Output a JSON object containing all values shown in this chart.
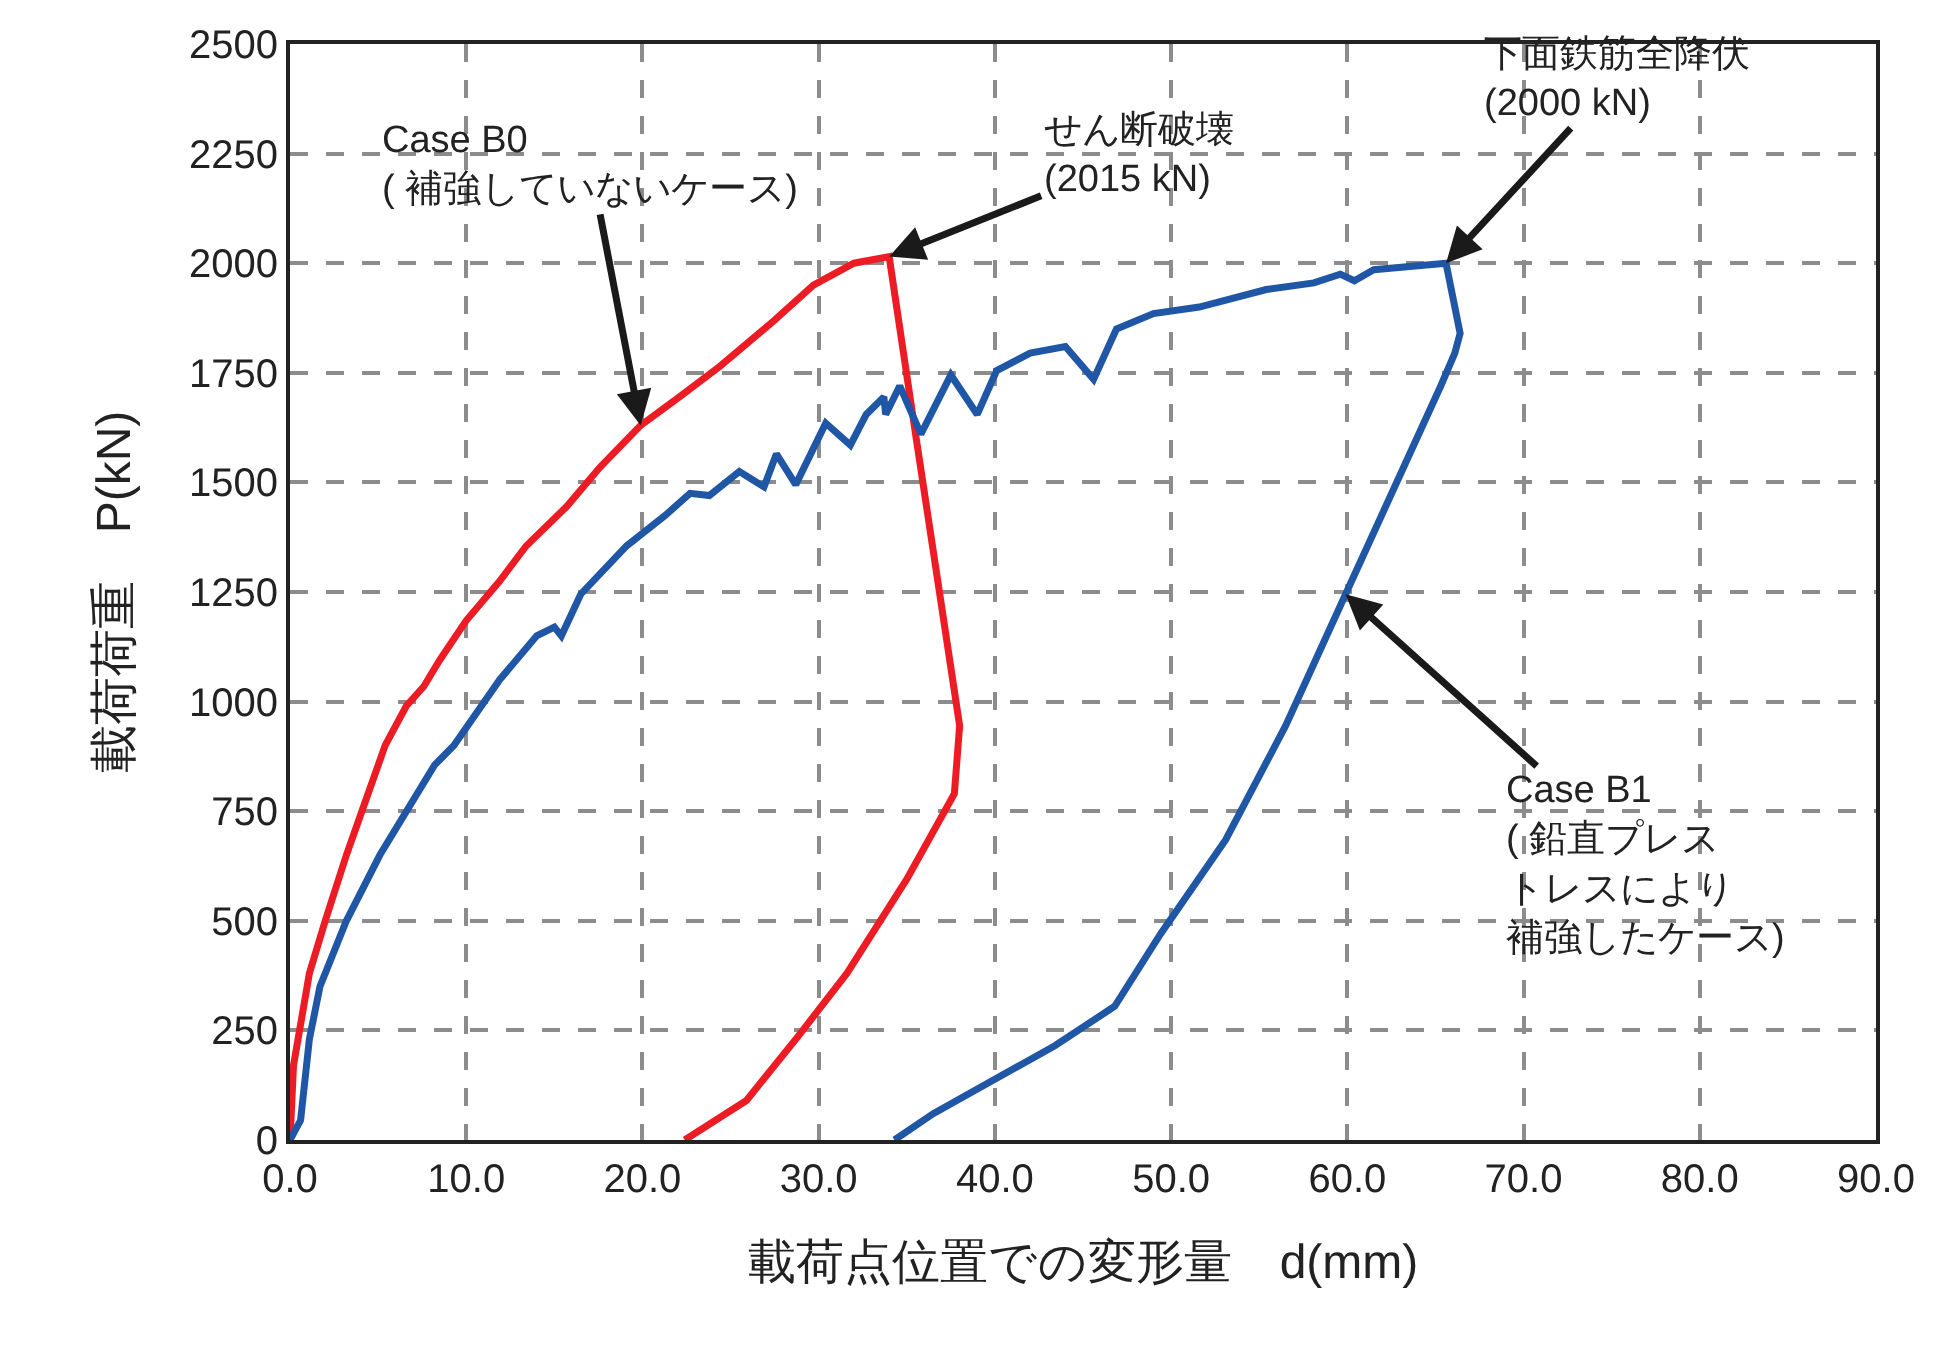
{
  "chart_data": {
    "type": "line",
    "xlabel": "載荷点位置での変形量　d(mm)",
    "ylabel": "載荷荷重　P(kN)",
    "xlim": [
      0,
      90
    ],
    "ylim": [
      0,
      2500
    ],
    "xticks": [
      {
        "value": 0,
        "label": "0.0"
      },
      {
        "value": 10,
        "label": "10.0"
      },
      {
        "value": 20,
        "label": "20.0"
      },
      {
        "value": 30,
        "label": "30.0"
      },
      {
        "value": 40,
        "label": "40.0"
      },
      {
        "value": 50,
        "label": "50.0"
      },
      {
        "value": 60,
        "label": "60.0"
      },
      {
        "value": 70,
        "label": "70.0"
      },
      {
        "value": 80,
        "label": "80.0"
      },
      {
        "value": 90,
        "label": "90.0"
      }
    ],
    "yticks": [
      0,
      250,
      500,
      750,
      1000,
      1250,
      1500,
      1750,
      2000,
      2250,
      2500
    ],
    "grid": true,
    "marker": "none",
    "line_style": "solid",
    "series": [
      {
        "color": "#ed1c24",
        "x": [
          0,
          0.2,
          1.1,
          2.0,
          3.2,
          4.3,
          5.4,
          6.6,
          7.6,
          8.5,
          10.0,
          11.9,
          13.4,
          15.7,
          17.6,
          19.9,
          22.1,
          24.4,
          27.5,
          29.7,
          32.0,
          34.0,
          35.5,
          38.0,
          37.7,
          35.0,
          31.6,
          28.9,
          25.9,
          22.4
        ],
        "values": [
          0,
          170,
          380,
          500,
          650,
          775,
          900,
          990,
          1035,
          1095,
          1185,
          1275,
          1355,
          1445,
          1535,
          1630,
          1695,
          1765,
          1870,
          1950,
          2000,
          2015,
          1610,
          945,
          790,
          595,
          380,
          240,
          90,
          0
        ]
      },
      {
        "color": "#1f56a5",
        "x": [
          0,
          0.6,
          1.1,
          1.7,
          3.2,
          5.1,
          8.2,
          9.3,
          11.9,
          14.0,
          15.0,
          15.4,
          16.5,
          19.1,
          21.3,
          22.7,
          23.8,
          25.5,
          26.9,
          27.6,
          28.7,
          30.4,
          31.8,
          32.7,
          33.7,
          33.8,
          34.6,
          35.8,
          37.5,
          39.0,
          40.1,
          42.0,
          44.0,
          45.6,
          46.9,
          49.0,
          51.6,
          55.4,
          58.1,
          59.6,
          60.4,
          61.5,
          65.6,
          66.4,
          66.1,
          65.3,
          59.9,
          56.5,
          53.1,
          49.4,
          46.8,
          43.4,
          36.5,
          34.3
        ],
        "values": [
          0,
          45,
          230,
          350,
          500,
          650,
          855,
          900,
          1050,
          1150,
          1170,
          1150,
          1245,
          1355,
          1425,
          1475,
          1470,
          1525,
          1490,
          1565,
          1495,
          1635,
          1585,
          1655,
          1695,
          1655,
          1720,
          1610,
          1745,
          1655,
          1755,
          1795,
          1810,
          1735,
          1850,
          1885,
          1900,
          1940,
          1955,
          1975,
          1960,
          1985,
          2000,
          1840,
          1795,
          1720,
          1245,
          945,
          685,
          470,
          305,
          215,
          60,
          0
        ]
      }
    ],
    "annotations": [
      {
        "text": "Case B0\n( 補強していないケース)",
        "x": 19.9,
        "y": 1630
      },
      {
        "text": "せん断破壊\n(2015 kN)",
        "x": 34.0,
        "y": 2015
      },
      {
        "text": "下面鉄筋全降伏\n(2000 kN)",
        "x": 65.6,
        "y": 2000
      },
      {
        "text": "Case B1\n( 鉛直プレストレスにより補強したケース)",
        "x": 59.9,
        "y": 1245
      }
    ]
  }
}
